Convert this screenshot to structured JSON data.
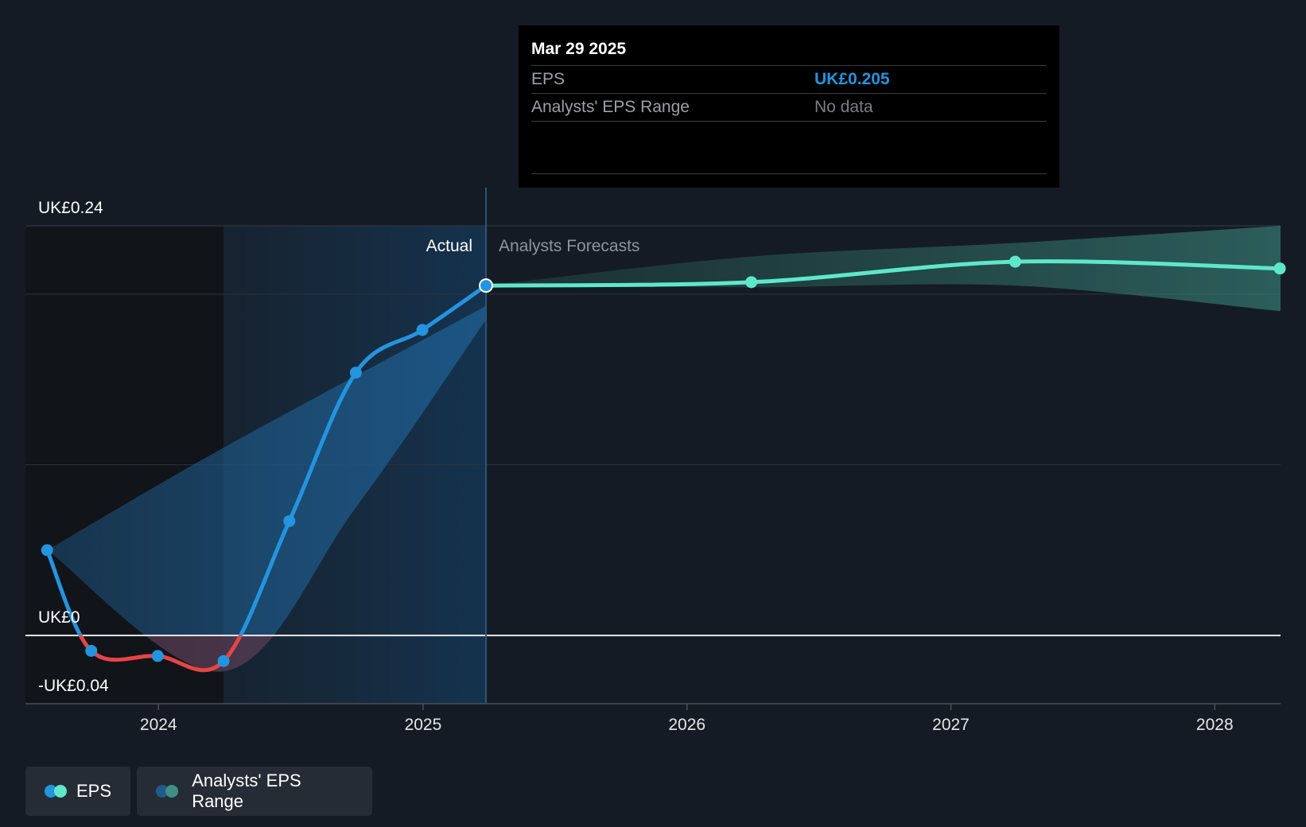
{
  "chart_data": {
    "type": "line",
    "ylim": [
      -0.04,
      0.24
    ],
    "xlim": [
      "2023-07-01",
      "2028-04-01"
    ],
    "y_tick_labels": [
      {
        "value": 0.24,
        "label": "UK£0.24"
      },
      {
        "value": 0,
        "label": "UK£0"
      },
      {
        "value": -0.04,
        "label": "-UK£0.04"
      }
    ],
    "x_tick_labels": [
      {
        "date": "2024-01-01",
        "label": "2024"
      },
      {
        "date": "2025-01-01",
        "label": "2025"
      },
      {
        "date": "2026-01-01",
        "label": "2026"
      },
      {
        "date": "2027-01-01",
        "label": "2027"
      },
      {
        "date": "2028-01-01",
        "label": "2028"
      }
    ],
    "grid": true,
    "divider_date": "2025-03-29",
    "past_shade_start": "2024-03-31",
    "actual_label": "Actual",
    "forecast_label": "Analysts Forecasts",
    "series": [
      {
        "name": "EPS",
        "points": [
          {
            "x": "2023-07-31",
            "y": 0.05
          },
          {
            "x": "2023-09-30",
            "y": -0.009
          },
          {
            "x": "2023-12-31",
            "y": -0.012
          },
          {
            "x": "2024-03-31",
            "y": -0.015
          },
          {
            "x": "2024-06-30",
            "y": 0.067
          },
          {
            "x": "2024-09-30",
            "y": 0.154
          },
          {
            "x": "2024-12-31",
            "y": 0.179
          },
          {
            "x": "2025-03-29",
            "y": 0.205
          }
        ]
      },
      {
        "name": "EPS Forecast",
        "points": [
          {
            "x": "2025-03-29",
            "y": 0.205
          },
          {
            "x": "2026-03-31",
            "y": 0.207
          },
          {
            "x": "2027-03-31",
            "y": 0.219
          },
          {
            "x": "2028-03-31",
            "y": 0.215
          }
        ]
      }
    ],
    "analysts_eps_range_past": {
      "upper": [
        {
          "x": "2023-07-31",
          "y": 0.05
        },
        {
          "x": "2024-03-31",
          "y": 0.11
        },
        {
          "x": "2025-03-29",
          "y": 0.193
        }
      ],
      "lower": [
        {
          "x": "2023-07-31",
          "y": 0.05
        },
        {
          "x": "2024-03-31",
          "y": -0.021
        },
        {
          "x": "2024-09-30",
          "y": 0.075
        },
        {
          "x": "2025-03-29",
          "y": 0.185
        }
      ]
    },
    "analysts_eps_range_forecast": {
      "upper": [
        {
          "x": "2025-03-29",
          "y": 0.205
        },
        {
          "x": "2026-03-31",
          "y": 0.222
        },
        {
          "x": "2027-03-31",
          "y": 0.23
        },
        {
          "x": "2028-04-01",
          "y": 0.24
        }
      ],
      "lower": [
        {
          "x": "2025-03-29",
          "y": 0.205
        },
        {
          "x": "2026-03-31",
          "y": 0.204
        },
        {
          "x": "2027-03-31",
          "y": 0.205
        },
        {
          "x": "2028-04-01",
          "y": 0.19
        }
      ]
    },
    "colors": {
      "eps_positive": "#2394df",
      "eps_negative": "#e64545",
      "forecast": "#5ee8c9",
      "range_past": "#1e5b8c",
      "range_forecast": "#2f6f66",
      "background": "#151b24"
    }
  },
  "tooltip": {
    "date": "Mar 29 2025",
    "rows": [
      {
        "label": "EPS",
        "value": "UK£0.205"
      },
      {
        "label": "Analysts' EPS Range",
        "value": "No data"
      }
    ]
  },
  "legend": {
    "items": [
      {
        "label": "EPS",
        "colors": [
          "#2394df",
          "#5ee8c9"
        ]
      },
      {
        "label": "Analysts' EPS Range",
        "colors": [
          "#1e5b8c",
          "#3f8f84"
        ]
      }
    ]
  }
}
